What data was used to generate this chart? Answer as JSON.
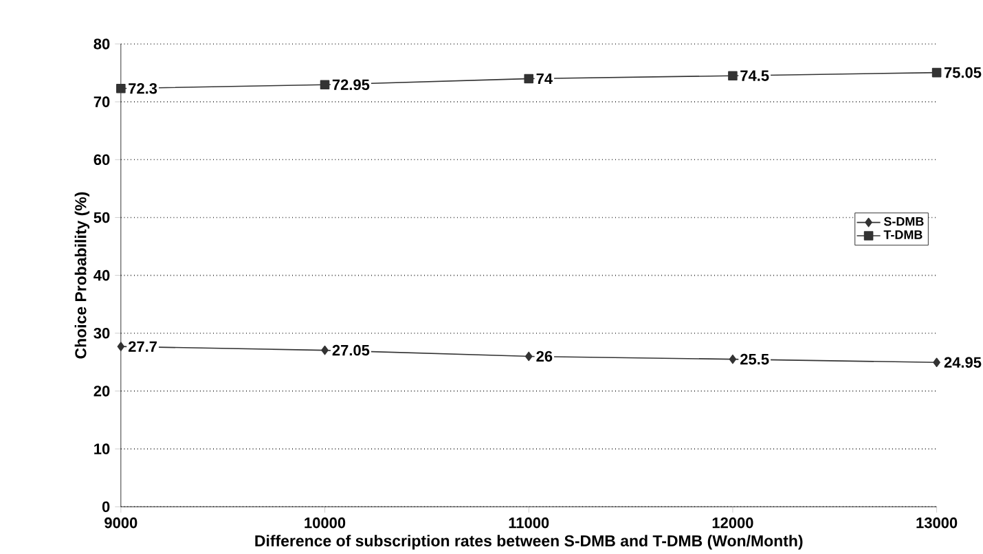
{
  "chart_data": {
    "type": "line",
    "xlabel": "Difference of subscription rates between S-DMB and T-DMB (Won/Month)",
    "ylabel": "Choice Probability (%)",
    "x": [
      9000,
      10000,
      11000,
      12000,
      13000
    ],
    "series": [
      {
        "name": "S-DMB",
        "color": "#333333",
        "marker": "diamond",
        "values": [
          27.7,
          27.05,
          26,
          25.5,
          24.95
        ]
      },
      {
        "name": "T-DMB",
        "color": "#333333",
        "marker": "square",
        "values": [
          72.3,
          72.95,
          74,
          74.5,
          75.05
        ]
      }
    ],
    "xlim": [
      9000,
      13000
    ],
    "xticks": [
      9000,
      10000,
      11000,
      12000,
      13000
    ],
    "ylim": [
      0,
      80
    ],
    "yticks": [
      0,
      10,
      20,
      30,
      40,
      50,
      60,
      70,
      80
    ],
    "grid": "y",
    "legend": "right",
    "data_labels": true,
    "line_style": "solid"
  }
}
